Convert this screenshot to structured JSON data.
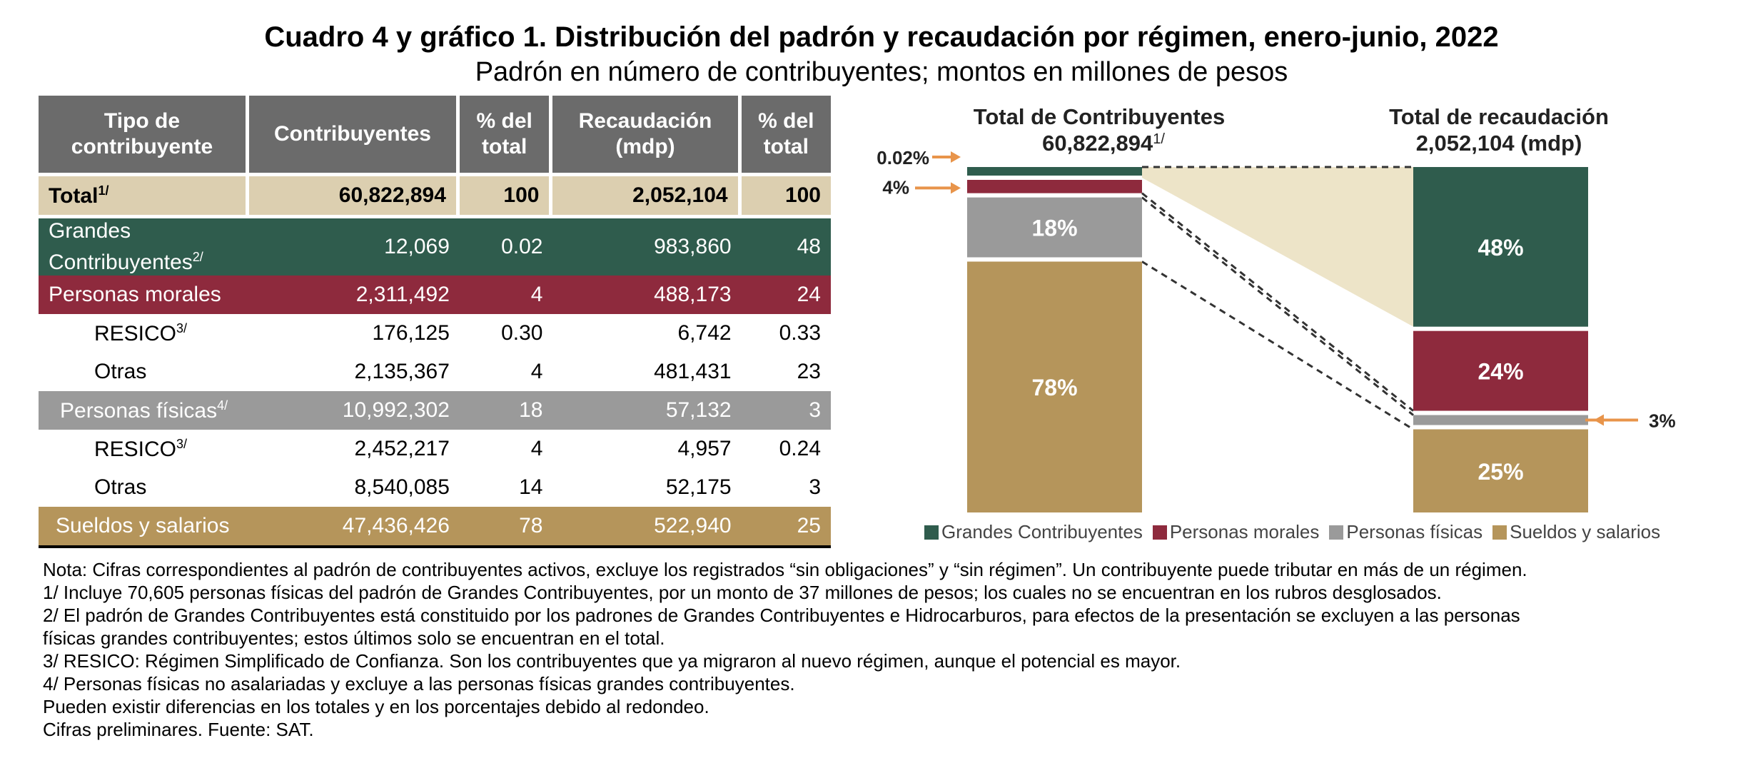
{
  "title": "Cuadro 4 y gráfico 1. Distribución del padrón y recaudación por régimen, enero-junio, 2022",
  "subtitle": "Padrón en número de contribuyentes; montos en millones de pesos",
  "table": {
    "headers": {
      "tipo_1": "Tipo de",
      "tipo_2": "contribuyente",
      "contribuyentes": "Contribuyentes",
      "pct1_1": "% del",
      "pct1_2": "total",
      "recaudacion_1": "Recaudación",
      "recaudacion_2": "(mdp)",
      "pct2_1": "% del",
      "pct2_2": "total"
    },
    "rows": [
      {
        "label": "Total",
        "sup": "1/",
        "contribuyentes": "60,822,894",
        "pct_contrib": "100",
        "recaudacion": "2,052,104",
        "pct_rec": "100"
      },
      {
        "label": "Grandes",
        "label2": "Contribuyentes",
        "sup": "2/",
        "contribuyentes": "12,069",
        "pct_contrib": "0.02",
        "recaudacion": "983,860",
        "pct_rec": "48"
      },
      {
        "label": "Personas morales",
        "contribuyentes": "2,311,492",
        "pct_contrib": "4",
        "recaudacion": "488,173",
        "pct_rec": "24"
      },
      {
        "label": "RESICO",
        "sup": "3/",
        "contribuyentes": "176,125",
        "pct_contrib": "0.30",
        "recaudacion": "6,742",
        "pct_rec": "0.33"
      },
      {
        "label": "Otras",
        "contribuyentes": "2,135,367",
        "pct_contrib": "4",
        "recaudacion": "481,431",
        "pct_rec": "23"
      },
      {
        "label": "Personas físicas",
        "sup": "4/",
        "contribuyentes": "10,992,302",
        "pct_contrib": "18",
        "recaudacion": "57,132",
        "pct_rec": "3"
      },
      {
        "label": "RESICO",
        "sup": "3/",
        "contribuyentes": "2,452,217",
        "pct_contrib": "4",
        "recaudacion": "4,957",
        "pct_rec": "0.24"
      },
      {
        "label": "Otras",
        "contribuyentes": "8,540,085",
        "pct_contrib": "14",
        "recaudacion": "52,175",
        "pct_rec": "3"
      },
      {
        "label": "Sueldos y salarios",
        "contribuyentes": "47,436,426",
        "pct_contrib": "78",
        "recaudacion": "522,940",
        "pct_rec": "25"
      }
    ]
  },
  "notes": [
    "Nota: Cifras correspondientes al padrón de contribuyentes activos, excluye los registrados “sin obligaciones” y “sin régimen”. Un contribuyente puede tributar en más de un régimen.",
    "1/ Incluye 70,605 personas físicas del padrón de Grandes Contribuyentes, por un monto de 37 millones de pesos; los cuales no se encuentran en los rubros desglosados.",
    "2/ El padrón de Grandes Contribuyentes está constituido por los padrones de Grandes Contribuyentes e Hidrocarburos, para efectos de la presentación se excluyen a las personas",
    "físicas grandes contribuyentes; estos últimos solo se encuentran en el total.",
    "3/ RESICO: Régimen Simplificado de Confianza. Son los contribuyentes que ya migraron al nuevo régimen, aunque el potencial es mayor.",
    "4/ Personas físicas no asalariadas y excluye a las personas físicas grandes contribuyentes.",
    "Pueden existir diferencias en los totales y en los porcentajes debido al redondeo.",
    "Cifras preliminares. Fuente: SAT."
  ],
  "chart_data": {
    "type": "bar",
    "stacked": true,
    "grid": false,
    "legend_position": "bottom",
    "bars": [
      {
        "title": "Total de Contribuyentes",
        "total_label": "60,822,894",
        "total_sup": "1/"
      },
      {
        "title": "Total de recaudación",
        "total_label": "2,052,104 (mdp)",
        "total_sup": ""
      }
    ],
    "series": [
      {
        "name": "Grandes Contribuyentes",
        "color": "#2f5c4d",
        "values": [
          0.02,
          48
        ],
        "labels": [
          "0.02%",
          "48%"
        ]
      },
      {
        "name": "Personas morales",
        "color": "#8e2a3d",
        "values": [
          4,
          24
        ],
        "labels": [
          "4%",
          "24%"
        ]
      },
      {
        "name": "Personas físicas",
        "color": "#9a9a9a",
        "values": [
          18,
          3
        ],
        "labels": [
          "18%",
          "3%"
        ]
      },
      {
        "name": "Sueldos y salarios",
        "color": "#b5955b",
        "values": [
          78,
          25
        ],
        "labels": [
          "78%",
          "25%"
        ]
      }
    ],
    "connector_color": "#ede4c8",
    "arrow_color": "#e8944a"
  }
}
